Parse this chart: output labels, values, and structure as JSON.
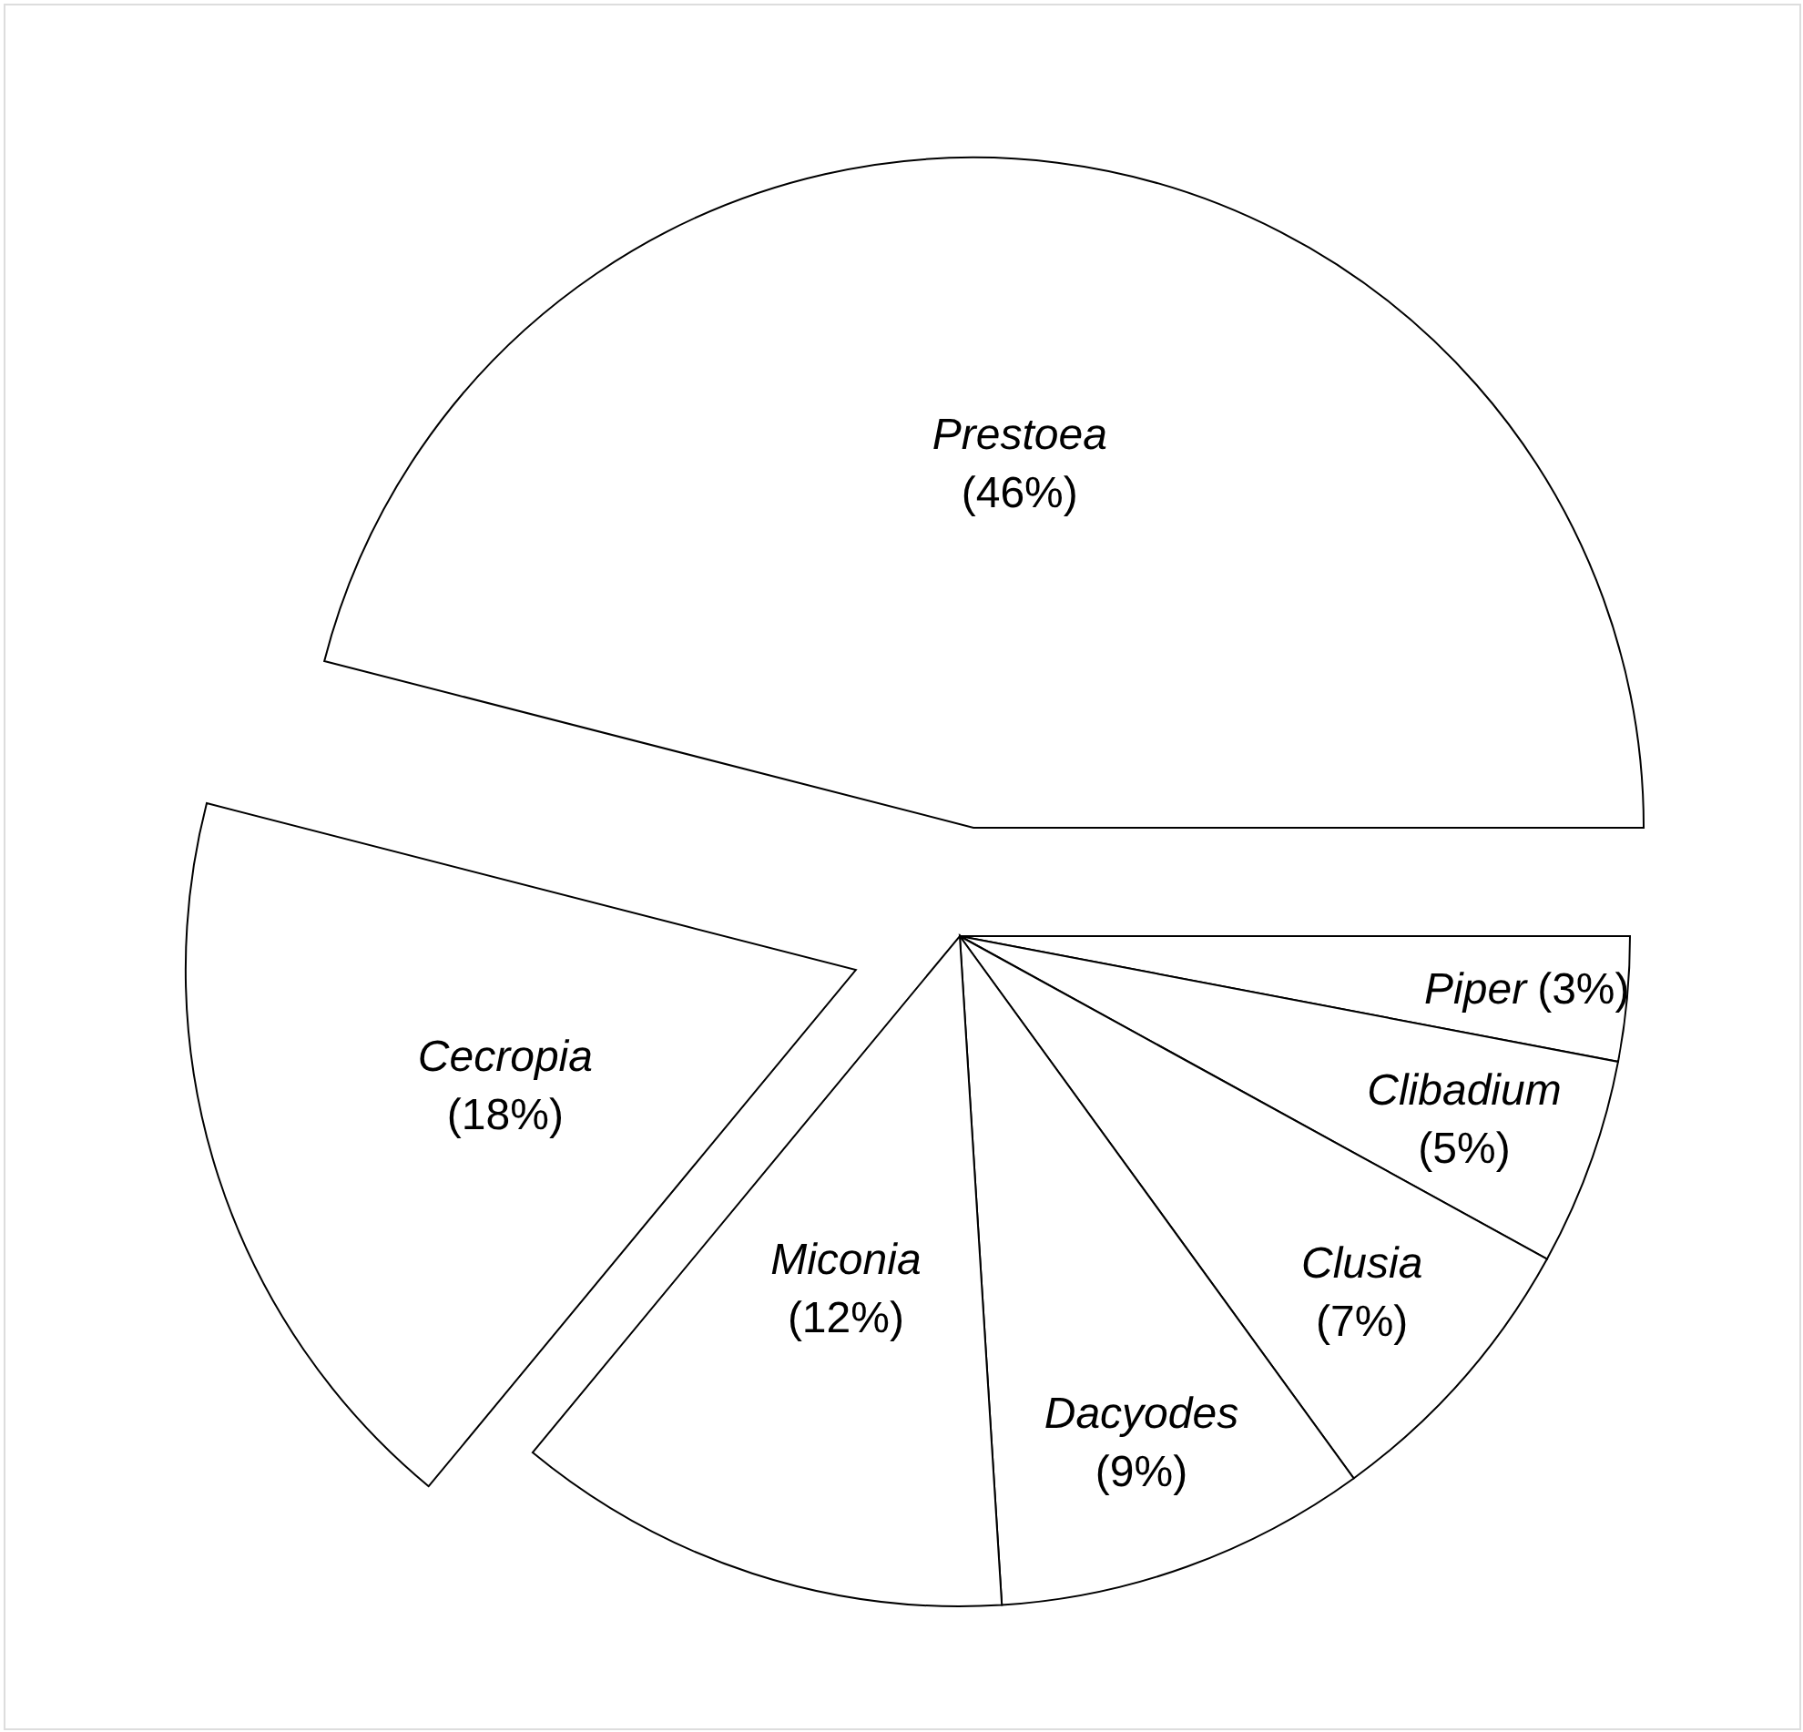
{
  "chart_data": {
    "type": "pie",
    "categories": [
      "Prestoea",
      "Cecropia",
      "Miconia",
      "Dacyodes",
      "Clusia",
      "Clibadium",
      "Piper"
    ],
    "values": [
      46,
      18,
      12,
      9,
      7,
      5,
      3
    ],
    "value_labels": [
      "(46%)",
      "(18%)",
      "(12%)",
      "(9%)",
      "(7%)",
      "(5%)",
      "(3%)"
    ],
    "colors": [
      "#ffffff",
      "#ffffff",
      "#ffffff",
      "#ffffff",
      "#ffffff",
      "#ffffff",
      "#ffffff"
    ]
  }
}
